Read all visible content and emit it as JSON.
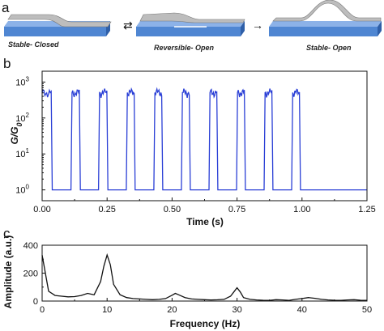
{
  "panel_a": {
    "label": "a",
    "captions": [
      "Stable- Closed",
      "Reversible- Open",
      "Stable- Open"
    ],
    "arrows": [
      "⇄",
      "→"
    ],
    "colors": {
      "substrate": "#5a8fd6",
      "substrate_dark": "#2f5fa8",
      "wire": "#b9b9b9"
    }
  },
  "chart_data": [
    {
      "panel": "b",
      "type": "line",
      "xlabel": "Time (s)",
      "ylabel": "G/G0",
      "ylabel_parts": {
        "base": "G/G",
        "sub": "0"
      },
      "xlim": [
        0,
        1.25
      ],
      "ylim": [
        0.5,
        2000
      ],
      "yscale": "log",
      "xticks": [
        "0.00",
        "0.25",
        "0.50",
        "0.75",
        "1.00",
        "1.25"
      ],
      "yticks": [
        {
          "value": 1,
          "base": "10",
          "exp": "0"
        },
        {
          "value": 10,
          "base": "10",
          "exp": "1"
        },
        {
          "value": 100,
          "base": "10",
          "exp": "2"
        },
        {
          "value": 1000,
          "base": "10",
          "exp": "3"
        }
      ],
      "color": "#2a3fd6",
      "high_level": 600,
      "low_level": 1,
      "open_intervals": [
        [
          0.035,
          0.115
        ],
        [
          0.143,
          0.221
        ],
        [
          0.249,
          0.328
        ],
        [
          0.354,
          0.434
        ],
        [
          0.46,
          0.54
        ],
        [
          0.566,
          0.646
        ],
        [
          0.672,
          0.752
        ],
        [
          0.778,
          0.858
        ],
        [
          0.884,
          0.964
        ],
        [
          0.99,
          1.07
        ]
      ],
      "high_intervals": [
        [
          0.0,
          0.035
        ],
        [
          0.115,
          0.143
        ],
        [
          0.221,
          0.249
        ],
        [
          0.328,
          0.354
        ],
        [
          0.434,
          0.46
        ],
        [
          0.54,
          0.566
        ],
        [
          0.646,
          0.672
        ],
        [
          0.752,
          0.778
        ],
        [
          0.858,
          0.884
        ],
        [
          0.964,
          0.99
        ]
      ],
      "grid": false
    },
    {
      "panel": "c",
      "type": "line",
      "xlabel": "Frequency (Hz)",
      "ylabel": "Amplitude (a.u.)",
      "xlim": [
        0,
        50
      ],
      "ylim": [
        0,
        400
      ],
      "xticks": [
        0,
        10,
        20,
        30,
        40,
        50
      ],
      "yticks": [
        0,
        200,
        400
      ],
      "color": "#111111",
      "x": [
        0,
        0.5,
        1,
        2,
        3,
        4,
        5,
        6,
        7,
        8,
        9,
        9.5,
        10,
        10.5,
        11,
        12,
        13,
        14,
        15,
        16,
        17,
        18,
        19,
        20,
        20.5,
        21,
        22,
        23,
        24,
        25,
        26,
        27,
        28,
        29,
        29.5,
        30,
        30.5,
        31,
        32,
        33,
        34,
        35,
        36,
        37,
        38,
        39,
        40,
        41,
        42,
        43,
        44,
        45,
        46,
        47,
        48,
        49,
        50
      ],
      "y": [
        330,
        200,
        70,
        40,
        35,
        30,
        32,
        40,
        55,
        45,
        140,
        250,
        330,
        260,
        120,
        45,
        25,
        18,
        15,
        12,
        10,
        12,
        18,
        42,
        55,
        45,
        25,
        15,
        12,
        10,
        8,
        9,
        12,
        35,
        65,
        95,
        65,
        25,
        12,
        8,
        6,
        5,
        10,
        8,
        5,
        12,
        18,
        25,
        20,
        12,
        8,
        6,
        5,
        8,
        10,
        6,
        5
      ],
      "grid": false
    }
  ]
}
